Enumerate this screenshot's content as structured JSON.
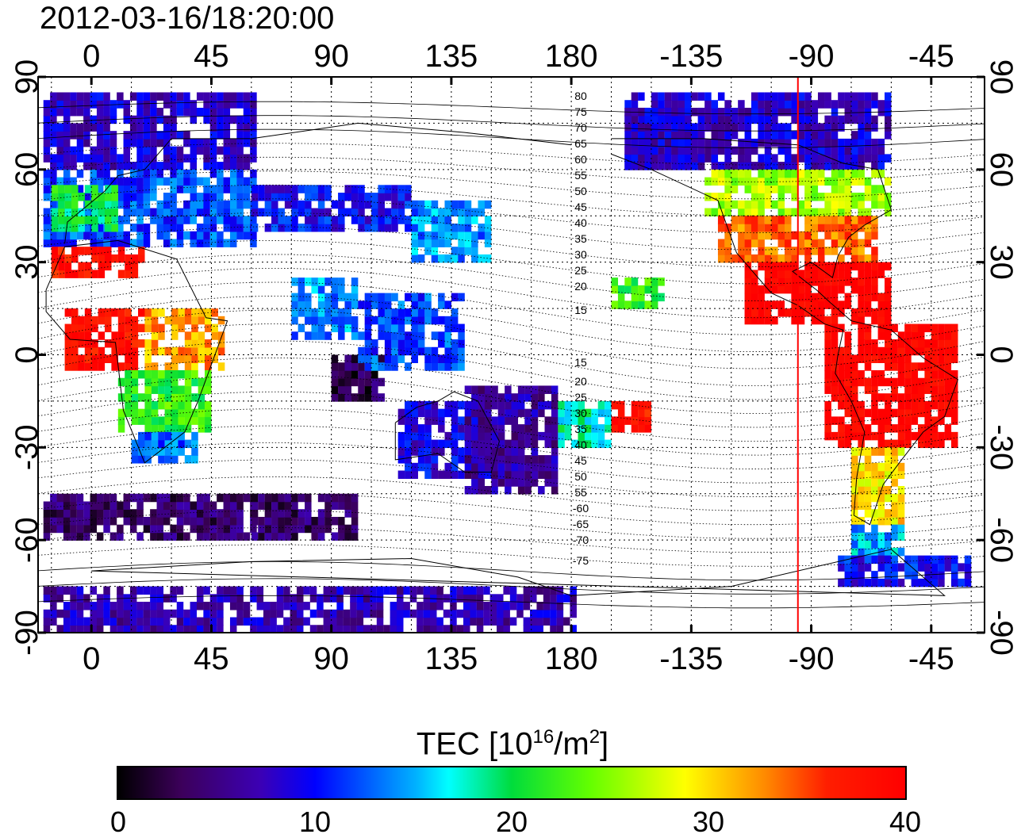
{
  "title": "2012-03-16/18:20:00",
  "map": {
    "lon_ticks_top": [
      "0",
      "45",
      "90",
      "135",
      "180",
      "-135",
      "-90",
      "-45"
    ],
    "lon_ticks_bottom": [
      "0",
      "45",
      "90",
      "135",
      "180",
      "-135",
      "-90",
      "-45"
    ],
    "lat_ticks_left": [
      "90",
      "60",
      "30",
      "0",
      "-30",
      "-60",
      "-90"
    ],
    "lat_ticks_right": [
      "90",
      "60",
      "30",
      "0",
      "-30",
      "-60",
      "-90"
    ],
    "lon_range": [
      -20,
      335
    ],
    "lat_range": [
      -90,
      90
    ],
    "terminator_longitude": -95,
    "terminator_color": "#ff0000",
    "magnetic_latitude_labels": [
      "80",
      "75",
      "70",
      "65",
      "60",
      "55",
      "50",
      "45",
      "40",
      "35",
      "30",
      "25",
      "20",
      "15",
      "15",
      "20",
      "25",
      "30",
      "35",
      "40",
      "45",
      "50",
      "55",
      "-60",
      "-65",
      "-70",
      "-75"
    ],
    "grid": "dotted"
  },
  "colorbar": {
    "label_main": "TEC  [10",
    "label_exp1": "16",
    "label_mid": "/m",
    "label_exp2": "2",
    "label_end": "]",
    "min": 0,
    "max": 40,
    "ticks": [
      "0",
      "10",
      "20",
      "30",
      "40"
    ],
    "colormap": "jet-like: black-purple-blue-cyan-green-yellow-orange-red"
  }
}
